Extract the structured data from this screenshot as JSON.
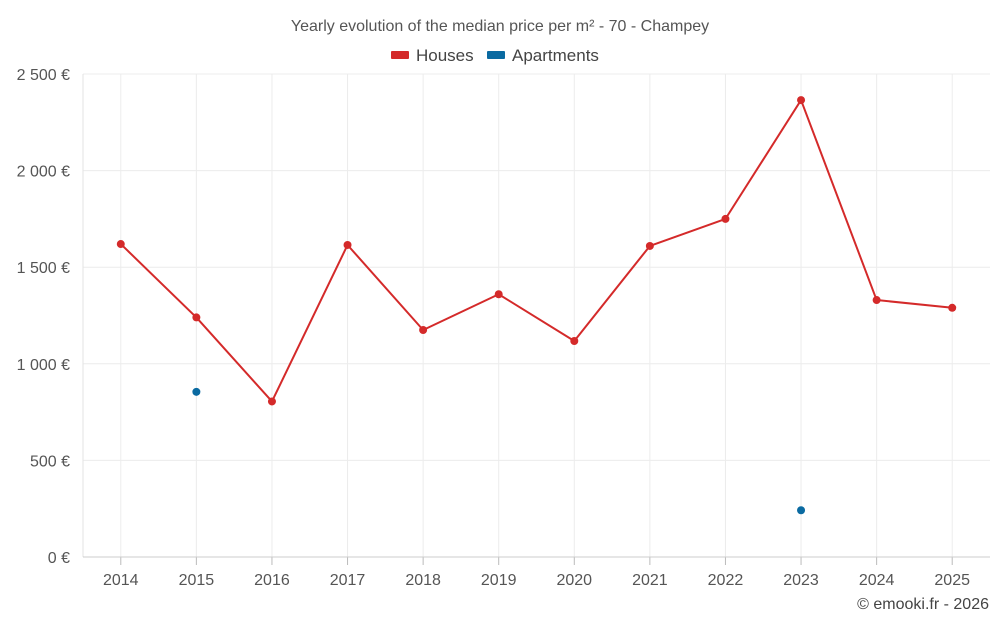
{
  "chart_data": {
    "type": "line",
    "title": "Yearly evolution of the median price per m² - 70 - Champey",
    "categories": [
      "2014",
      "2015",
      "2016",
      "2017",
      "2018",
      "2019",
      "2020",
      "2021",
      "2022",
      "2023",
      "2024",
      "2025"
    ],
    "series": [
      {
        "name": "Houses",
        "color": "#d42a2a",
        "mode": "line",
        "values": [
          1620,
          1240,
          805,
          1615,
          1175,
          1360,
          1118,
          1610,
          1750,
          2365,
          1330,
          1290
        ]
      },
      {
        "name": "Apartments",
        "color": "#0a6aa1",
        "mode": "points",
        "values": [
          null,
          855,
          null,
          null,
          null,
          null,
          null,
          null,
          null,
          242,
          null,
          null
        ]
      }
    ],
    "y_ticks": [
      "0 €",
      "500 €",
      "1 000 €",
      "1 500 €",
      "2 000 €",
      "2 500 €"
    ],
    "ylim": [
      0,
      2500
    ],
    "y_tick_step": 500,
    "grid": true,
    "legend_position": "top-center",
    "xlabel": "",
    "ylabel": ""
  },
  "credit": "© emooki.fr - 2026"
}
